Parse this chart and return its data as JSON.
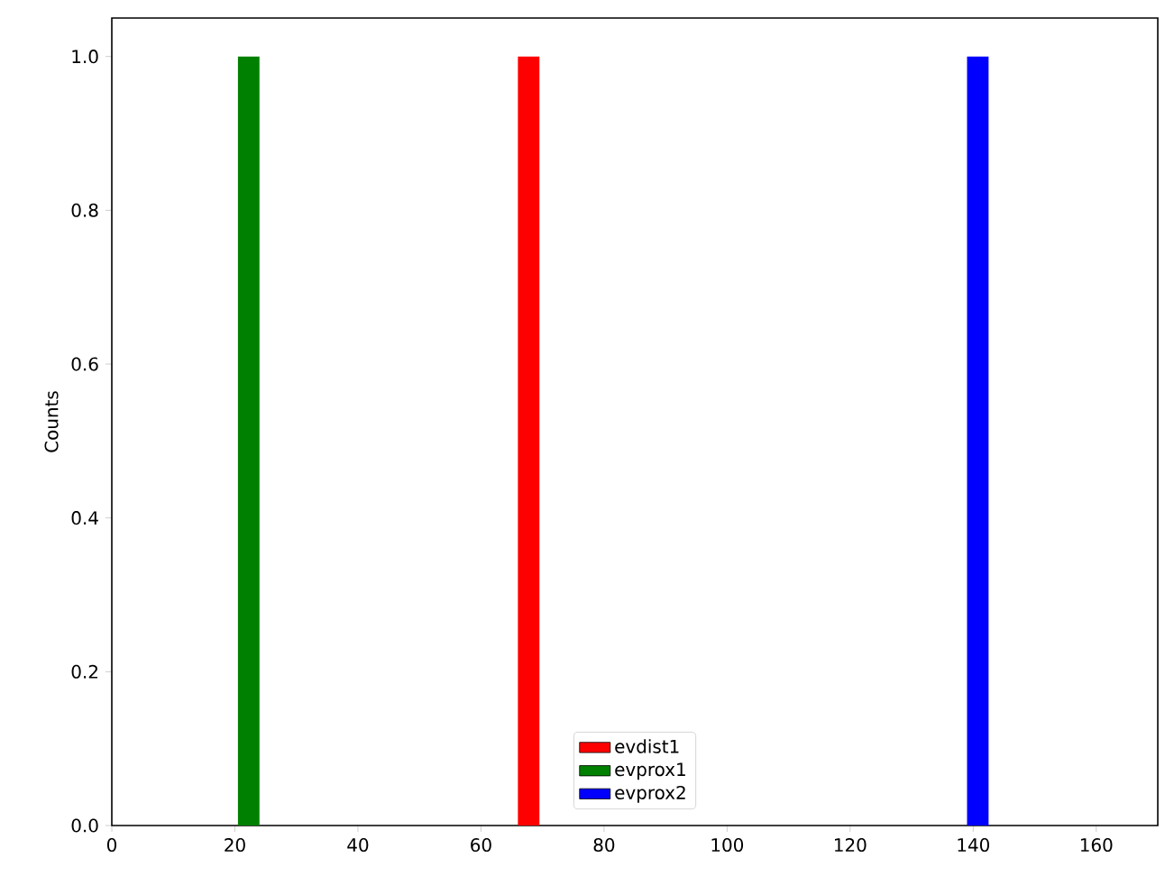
{
  "chart_data": {
    "type": "histogram",
    "ylabel": "Counts",
    "bins": [
      20.5,
      24,
      66,
      69.5,
      139,
      142.5
    ],
    "series": [
      {
        "name": "evdist1",
        "color": "#ff0000",
        "values": [
          0,
          0,
          1,
          0,
          0
        ]
      },
      {
        "name": "evprox1",
        "color": "#008000",
        "values": [
          1,
          0,
          0,
          0,
          0
        ]
      },
      {
        "name": "evprox2",
        "color": "#0000ff",
        "values": [
          0,
          0,
          0,
          0,
          1
        ]
      }
    ],
    "xlim": [
      0,
      170
    ],
    "xticks": [
      {
        "value": 0,
        "label": "0"
      },
      {
        "value": 20,
        "label": "20"
      },
      {
        "value": 40,
        "label": "40"
      },
      {
        "value": 60,
        "label": "60"
      },
      {
        "value": 80,
        "label": "80"
      },
      {
        "value": 100,
        "label": "100"
      },
      {
        "value": 120,
        "label": "120"
      },
      {
        "value": 140,
        "label": "140"
      },
      {
        "value": 160,
        "label": "160"
      }
    ],
    "ylim": [
      0,
      1.05
    ],
    "yticks": [
      {
        "value": 0,
        "label": "0.0"
      },
      {
        "value": 0.2,
        "label": "0.2"
      },
      {
        "value": 0.4,
        "label": "0.4"
      },
      {
        "value": 0.6,
        "label": "0.6"
      },
      {
        "value": 0.8,
        "label": "0.8"
      },
      {
        "value": 1.0,
        "label": "1.0"
      }
    ],
    "legend": "bottom"
  }
}
